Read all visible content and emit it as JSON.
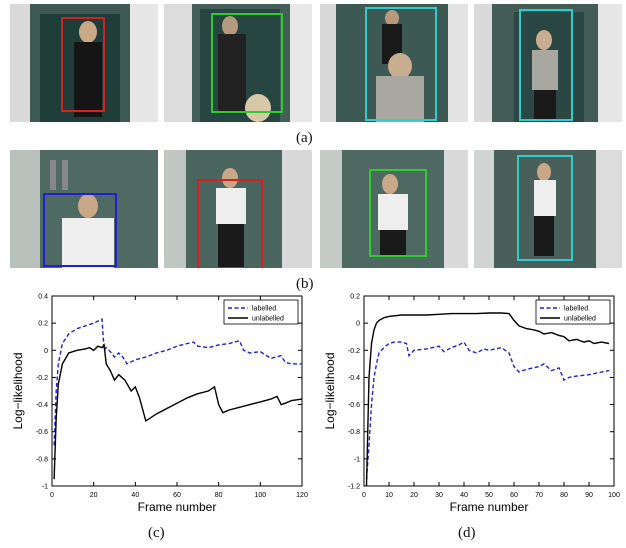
{
  "labels": {
    "a": "(a)",
    "b": "(b)",
    "c": "(c)",
    "d": "(d)"
  },
  "colors": {
    "red": "#d42020",
    "green": "#2ecc2e",
    "cyan": "#33cccc",
    "blue": "#2020d0",
    "labelled": "#2020d0",
    "unlabelled": "#000000"
  },
  "row_a": [
    {
      "box": "red"
    },
    {
      "box": "green"
    },
    {
      "box": "cyan"
    },
    {
      "box": "cyan"
    }
  ],
  "row_b": [
    {
      "box": "blue"
    },
    {
      "box": "red"
    },
    {
      "box": "green"
    },
    {
      "box": "cyan"
    }
  ],
  "chart_data": [
    {
      "type": "line",
      "ylabel": "Log−likelihood",
      "xlabel": "Frame number",
      "xlim": [
        0,
        120
      ],
      "ylim": [
        -1,
        0.4
      ],
      "xticks": [
        "0",
        "20",
        "40",
        "60",
        "80",
        "100",
        "120"
      ],
      "yticks": [
        "-1",
        "-0.8",
        "-0.6",
        "-0.4",
        "-0.2",
        "0",
        "0.2",
        "0.4"
      ],
      "legend_position": "top-right",
      "series": [
        {
          "name": "labelled",
          "style": "dashed",
          "color": "#2020d0",
          "x": [
            1,
            2,
            3,
            5,
            8,
            12,
            16,
            20,
            24,
            25,
            26,
            28,
            30,
            32,
            34,
            36,
            40,
            45,
            50,
            55,
            60,
            65,
            68,
            70,
            75,
            80,
            85,
            90,
            92,
            95,
            100,
            105,
            110,
            112,
            115,
            120
          ],
          "y": [
            -0.7,
            -0.3,
            -0.1,
            0.05,
            0.12,
            0.16,
            0.18,
            0.2,
            0.23,
            0.0,
            0.02,
            -0.01,
            -0.05,
            -0.02,
            -0.05,
            -0.1,
            -0.07,
            -0.05,
            -0.02,
            0.0,
            0.03,
            0.05,
            0.06,
            0.03,
            0.02,
            0.04,
            0.05,
            0.07,
            0.0,
            -0.02,
            -0.01,
            -0.06,
            -0.04,
            -0.09,
            -0.1,
            -0.1
          ]
        },
        {
          "name": "unlabelled",
          "style": "solid",
          "color": "#000000",
          "x": [
            1,
            2,
            3,
            5,
            8,
            12,
            16,
            18,
            20,
            22,
            24,
            25,
            26,
            28,
            30,
            32,
            35,
            38,
            40,
            42,
            45,
            50,
            55,
            60,
            65,
            70,
            75,
            78,
            80,
            82,
            85,
            90,
            95,
            100,
            105,
            108,
            110,
            112,
            115,
            120
          ],
          "y": [
            -0.95,
            -0.5,
            -0.25,
            -0.1,
            -0.02,
            0.0,
            0.01,
            0.02,
            0.0,
            0.03,
            0.02,
            0.04,
            -0.1,
            -0.15,
            -0.22,
            -0.18,
            -0.22,
            -0.3,
            -0.27,
            -0.35,
            -0.52,
            -0.47,
            -0.43,
            -0.39,
            -0.35,
            -0.32,
            -0.3,
            -0.27,
            -0.4,
            -0.46,
            -0.44,
            -0.42,
            -0.4,
            -0.38,
            -0.36,
            -0.34,
            -0.4,
            -0.39,
            -0.37,
            -0.36
          ]
        }
      ]
    },
    {
      "type": "line",
      "ylabel": "Log−likelihood",
      "xlabel": "Frame number",
      "xlim": [
        0,
        100
      ],
      "ylim": [
        -1.2,
        0.2
      ],
      "xticks": [
        "0",
        "10",
        "20",
        "30",
        "40",
        "50",
        "60",
        "70",
        "80",
        "90",
        "100"
      ],
      "yticks": [
        "-1.2",
        "-1",
        "-0.8",
        "-0.6",
        "-0.4",
        "-0.2",
        "0",
        "0.2"
      ],
      "legend_position": "top-right",
      "series": [
        {
          "name": "labelled",
          "style": "dashed",
          "color": "#2020d0",
          "x": [
            1,
            2,
            3,
            4,
            5,
            6,
            8,
            10,
            12,
            15,
            17,
            18,
            20,
            25,
            30,
            32,
            35,
            38,
            40,
            42,
            45,
            48,
            50,
            55,
            58,
            60,
            62,
            65,
            70,
            72,
            75,
            78,
            80,
            82,
            85,
            90,
            95,
            98
          ],
          "y": [
            -1.15,
            -0.9,
            -0.6,
            -0.4,
            -0.3,
            -0.22,
            -0.18,
            -0.15,
            -0.14,
            -0.14,
            -0.15,
            -0.24,
            -0.2,
            -0.19,
            -0.17,
            -0.21,
            -0.18,
            -0.16,
            -0.14,
            -0.2,
            -0.22,
            -0.19,
            -0.2,
            -0.18,
            -0.22,
            -0.32,
            -0.36,
            -0.34,
            -0.32,
            -0.3,
            -0.35,
            -0.33,
            -0.42,
            -0.4,
            -0.39,
            -0.38,
            -0.36,
            -0.35
          ]
        },
        {
          "name": "unlabelled",
          "style": "solid",
          "color": "#000000",
          "x": [
            1,
            2,
            3,
            4,
            5,
            6,
            8,
            10,
            15,
            20,
            25,
            30,
            35,
            40,
            45,
            50,
            55,
            58,
            60,
            62,
            65,
            68,
            70,
            72,
            75,
            78,
            80,
            82,
            85,
            88,
            90,
            92,
            95,
            98
          ],
          "y": [
            -1.2,
            -0.4,
            -0.15,
            -0.05,
            0.0,
            0.02,
            0.04,
            0.05,
            0.06,
            0.06,
            0.06,
            0.065,
            0.07,
            0.07,
            0.07,
            0.075,
            0.075,
            0.07,
            0.02,
            -0.02,
            -0.04,
            -0.05,
            -0.06,
            -0.08,
            -0.07,
            -0.09,
            -0.1,
            -0.13,
            -0.12,
            -0.14,
            -0.13,
            -0.15,
            -0.14,
            -0.15
          ]
        }
      ]
    }
  ]
}
